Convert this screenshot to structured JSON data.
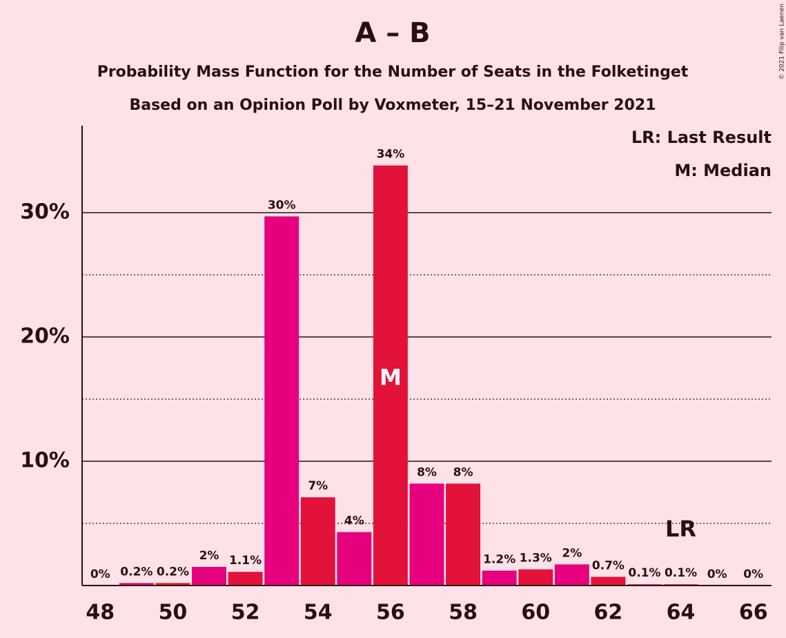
{
  "chart_data": {
    "type": "bar",
    "title": "A – B",
    "subtitle": [
      "Probability Mass Function for the Number of Seats in the Folketinget",
      "Based on an Opinion Poll by Voxmeter, 15–21 November 2021"
    ],
    "x": [
      48,
      49,
      50,
      51,
      52,
      53,
      54,
      55,
      56,
      57,
      58,
      59,
      60,
      61,
      62,
      63,
      64,
      65,
      66
    ],
    "values": [
      0,
      0.2,
      0.2,
      1.5,
      1.1,
      29.7,
      7.1,
      4.3,
      33.8,
      8.2,
      8.2,
      1.2,
      1.3,
      1.7,
      0.7,
      0.1,
      0.1,
      0,
      0
    ],
    "value_labels": [
      "0%",
      "0.2%",
      "0.2%",
      "2%",
      "1.1%",
      "30%",
      "7%",
      "4%",
      "34%",
      "8%",
      "8%",
      "1.2%",
      "1.3%",
      "2%",
      "0.7%",
      "0.1%",
      "0.1%",
      "0%",
      "0%"
    ],
    "colors": [
      "#e3123b",
      "#e6007e",
      "#e3123b",
      "#e6007e",
      "#e3123b",
      "#e6007e",
      "#e3123b",
      "#e6007e",
      "#e3123b",
      "#e6007e",
      "#e3123b",
      "#e6007e",
      "#e3123b",
      "#e6007e",
      "#e3123b",
      "#e6007e",
      "#e3123b",
      "#e6007e",
      "#e3123b"
    ],
    "xlim": [
      47.5,
      66.5
    ],
    "xticks": [
      48,
      50,
      52,
      54,
      56,
      58,
      60,
      62,
      64,
      66
    ],
    "ylim": [
      0,
      37
    ],
    "yticks": [
      {
        "value": 10,
        "label": "10%"
      },
      {
        "value": 20,
        "label": "20%"
      },
      {
        "value": 30,
        "label": "30%"
      }
    ],
    "minor_yticks": [
      5,
      15,
      25
    ],
    "grid": true,
    "median": {
      "x": 56,
      "label": "M"
    },
    "last_result": {
      "x": 64,
      "label": "LR"
    },
    "legend": [
      "LR: Last Result",
      "M: Median"
    ],
    "credit": "© 2021 Filip van Laenen"
  }
}
